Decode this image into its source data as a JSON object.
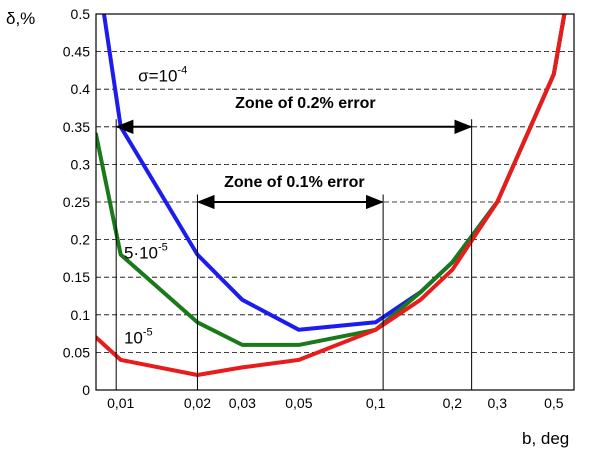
{
  "chart_data": {
    "type": "line",
    "xlabel": "b, deg",
    "ylabel": "δ,%",
    "x_scale": "log",
    "xlim": [
      0.008,
      0.6
    ],
    "ylim": [
      0,
      0.5
    ],
    "grid": "horizontal dashed",
    "x_ticks": [
      0.01,
      0.02,
      0.03,
      0.05,
      0.1,
      0.2,
      0.3,
      0.5
    ],
    "x_tick_labels": [
      "0,01",
      "0,02",
      "0,03",
      "0,05",
      "0,1",
      "0,2",
      "0,3",
      "0,5"
    ],
    "y_ticks": [
      0,
      0.05,
      0.1,
      0.15,
      0.2,
      0.25,
      0.3,
      0.35,
      0.4,
      0.45,
      0.5
    ],
    "y_tick_labels": [
      "0",
      "0.05",
      "0.1",
      "0.15",
      "0.2",
      "0.25",
      "0.3",
      "0.35",
      "0.4",
      "0.45",
      "0.5"
    ],
    "series": [
      {
        "name": "σ=10-4",
        "color": "#1c1cf0",
        "points": [
          [
            0.0086,
            0.5
          ],
          [
            0.01,
            0.35
          ],
          [
            0.02,
            0.18
          ],
          [
            0.03,
            0.12
          ],
          [
            0.05,
            0.08
          ],
          [
            0.1,
            0.09
          ],
          [
            0.15,
            0.13
          ],
          [
            0.2,
            0.17
          ],
          [
            0.3,
            0.25
          ],
          [
            0.5,
            0.42
          ],
          [
            0.55,
            0.5
          ]
        ]
      },
      {
        "name": "5·10-5",
        "color": "#1a7a1a",
        "points": [
          [
            0.008,
            0.34
          ],
          [
            0.01,
            0.18
          ],
          [
            0.02,
            0.09
          ],
          [
            0.03,
            0.06
          ],
          [
            0.05,
            0.06
          ],
          [
            0.1,
            0.08
          ],
          [
            0.15,
            0.13
          ],
          [
            0.2,
            0.17
          ],
          [
            0.3,
            0.25
          ],
          [
            0.5,
            0.42
          ],
          [
            0.55,
            0.5
          ]
        ]
      },
      {
        "name": "10-5",
        "color": "#e81c1c",
        "points": [
          [
            0.008,
            0.07
          ],
          [
            0.01,
            0.04
          ],
          [
            0.02,
            0.02
          ],
          [
            0.03,
            0.03
          ],
          [
            0.05,
            0.04
          ],
          [
            0.1,
            0.08
          ],
          [
            0.15,
            0.12
          ],
          [
            0.2,
            0.16
          ],
          [
            0.3,
            0.25
          ],
          [
            0.5,
            0.42
          ],
          [
            0.55,
            0.5
          ]
        ]
      }
    ],
    "series_labels": [
      {
        "base": "σ=10",
        "sup": "-4",
        "at": [
          0.0117,
          0.41
        ]
      },
      {
        "base": "5·10",
        "sup": "-5",
        "at": [
          0.0103,
          0.175
        ]
      },
      {
        "base": "10",
        "sup": "-5",
        "at": [
          0.0103,
          0.062
        ]
      }
    ],
    "annotations": [
      {
        "text": "Zone of 0.2% error",
        "text_at": [
          0.053,
          0.375
        ],
        "arrow_x": [
          0.0096,
          0.238
        ],
        "arrow_y": 0.35,
        "vlines_x": [
          0.0096,
          0.238
        ],
        "vline_top": 0.36
      },
      {
        "text": "Zone of 0.1% error",
        "text_at": [
          0.048,
          0.27
        ],
        "arrow_x": [
          0.02,
          0.107
        ],
        "arrow_y": 0.25,
        "vlines_x": [
          0.02,
          0.107
        ],
        "vline_top": 0.26
      }
    ]
  }
}
